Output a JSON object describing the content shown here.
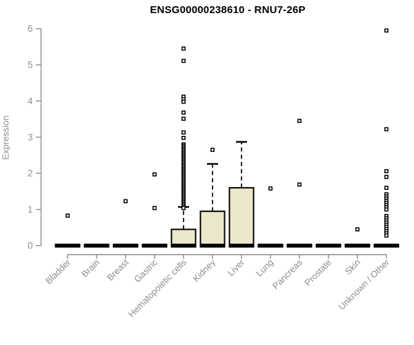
{
  "chart_data": {
    "type": "boxplot",
    "title": "ENSG00000238610 - RNU7-26P",
    "ylabel": "Expression",
    "xlabel": "",
    "ylim": [
      0,
      6
    ],
    "yticks": [
      0,
      1,
      2,
      3,
      4,
      5,
      6
    ],
    "grid": false,
    "legend": null,
    "categories": [
      "Bladder",
      "Brain",
      "Breast",
      "Gastric",
      "Hematopoietic cells",
      "Kidney",
      "Liver",
      "Lung",
      "Pancreas",
      "Prostate",
      "Skin",
      "Unknown / Other"
    ],
    "boxes": [
      {
        "category": "Bladder",
        "q1": 0,
        "median": 0,
        "q3": 0,
        "whisker_low": 0,
        "whisker_high": 0,
        "outliers": [
          0.83
        ]
      },
      {
        "category": "Brain",
        "q1": 0,
        "median": 0,
        "q3": 0,
        "whisker_low": 0,
        "whisker_high": 0,
        "outliers": []
      },
      {
        "category": "Breast",
        "q1": 0,
        "median": 0,
        "q3": 0,
        "whisker_low": 0,
        "whisker_high": 0,
        "outliers": [
          1.23
        ]
      },
      {
        "category": "Gastric",
        "q1": 0,
        "median": 0,
        "q3": 0,
        "whisker_low": 0,
        "whisker_high": 0,
        "outliers": [
          1.97,
          1.04
        ]
      },
      {
        "category": "Hematopoietic cells",
        "q1": 0,
        "median": 0,
        "q3": 0.45,
        "whisker_low": 0,
        "whisker_high": 1.07,
        "outliers": [
          5.45,
          5.11,
          4.12,
          4.05,
          3.98,
          3.68,
          3.51,
          3.13,
          2.98,
          2.8,
          2.76,
          2.72,
          2.68,
          2.64,
          2.6,
          2.56,
          2.52,
          2.48,
          2.44,
          2.4,
          2.36,
          2.32,
          2.28,
          2.24,
          2.2,
          2.16,
          2.12,
          2.08,
          2.04,
          2.0,
          1.96,
          1.92,
          1.88,
          1.84,
          1.8,
          1.76,
          1.72,
          1.68,
          1.64,
          1.6,
          1.56,
          1.52,
          1.48,
          1.44,
          1.4,
          1.36,
          1.32,
          1.28,
          1.24,
          1.2,
          1.16,
          1.12,
          1.08,
          1.04
        ]
      },
      {
        "category": "Kidney",
        "q1": 0,
        "median": 0,
        "q3": 0.95,
        "whisker_low": 0,
        "whisker_high": 2.26,
        "outliers": [
          2.65
        ]
      },
      {
        "category": "Liver",
        "q1": 0,
        "median": 0,
        "q3": 1.6,
        "whisker_low": 0,
        "whisker_high": 2.87,
        "outliers": []
      },
      {
        "category": "Lung",
        "q1": 0,
        "median": 0,
        "q3": 0,
        "whisker_low": 0,
        "whisker_high": 0,
        "outliers": [
          1.58
        ]
      },
      {
        "category": "Pancreas",
        "q1": 0,
        "median": 0,
        "q3": 0,
        "whisker_low": 0,
        "whisker_high": 0,
        "outliers": [
          3.45,
          1.69
        ]
      },
      {
        "category": "Prostate",
        "q1": 0,
        "median": 0,
        "q3": 0,
        "whisker_low": 0,
        "whisker_high": 0,
        "outliers": []
      },
      {
        "category": "Skin",
        "q1": 0,
        "median": 0,
        "q3": 0,
        "whisker_low": 0,
        "whisker_high": 0,
        "outliers": [
          0.45
        ]
      },
      {
        "category": "Unknown / Other",
        "q1": 0,
        "median": 0,
        "q3": 0,
        "whisker_low": 0,
        "whisker_high": 0,
        "outliers": [
          5.95,
          3.22,
          2.06,
          1.9,
          1.6,
          1.42,
          1.36,
          1.3,
          1.24,
          1.18,
          1.12,
          1.06,
          1.0,
          0.82,
          0.76,
          0.7,
          0.64,
          0.58,
          0.52,
          0.46,
          0.4,
          0.34,
          0.28
        ]
      }
    ],
    "colors": {
      "box_fill": "#ece6cb",
      "box_stroke": "#000000",
      "median": "#000000",
      "whisker": "#000000",
      "outlier_stroke": "#000000",
      "outlier_fill": "#ffffff",
      "axis": "#8c8c8c",
      "tick_label": "#8c9096",
      "title": "#000000",
      "background": "#ffffff"
    }
  }
}
